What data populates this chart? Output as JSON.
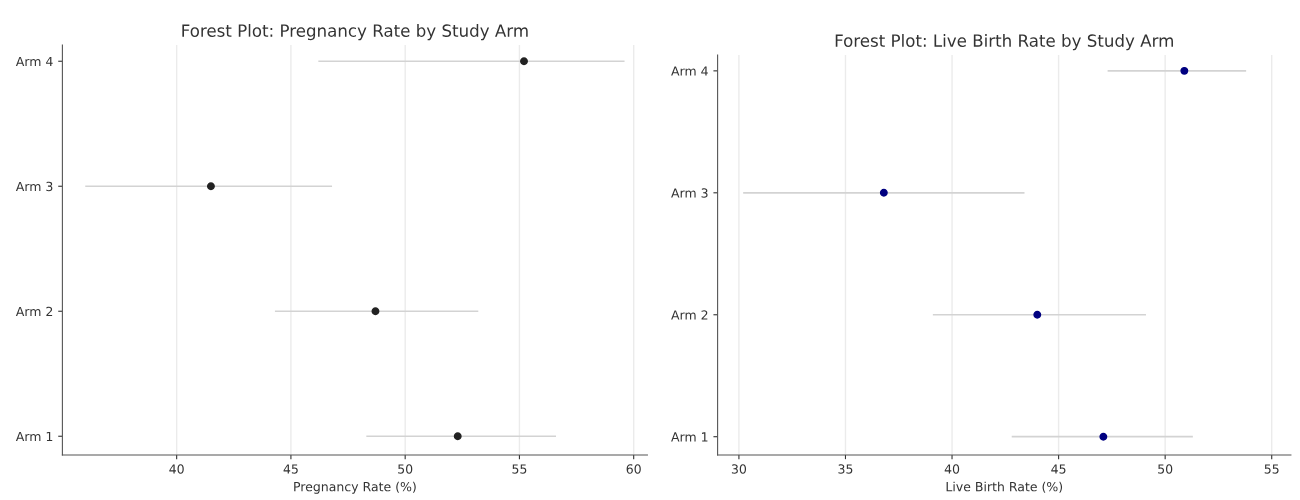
{
  "chart_data": [
    {
      "type": "scatter",
      "orientation": "horizontal",
      "title": "Forest Plot: Pregnancy Rate by Study Arm",
      "xlabel": "Pregnancy Rate (%)",
      "categories": [
        "Arm 4",
        "Arm 3",
        "Arm 2",
        "Arm 1"
      ],
      "series": [
        {
          "color": "#222222",
          "values": [
            55.2,
            41.5,
            48.7,
            52.3
          ],
          "errors": [
            [
              46.2,
              59.6
            ],
            [
              36.0,
              46.8
            ],
            [
              44.3,
              53.2
            ],
            [
              48.3,
              56.6
            ]
          ]
        }
      ],
      "xlim": [
        35.0,
        60.6
      ],
      "xticks": [
        40,
        45,
        50,
        55,
        60
      ],
      "grid": "x",
      "marker": "circle"
    },
    {
      "type": "scatter",
      "orientation": "horizontal",
      "title": "Forest Plot: Live Birth Rate by Study Arm",
      "xlabel": "Live Birth Rate (%)",
      "categories": [
        "Arm 4",
        "Arm 3",
        "Arm 2",
        "Arm 1"
      ],
      "series": [
        {
          "color": "#000080",
          "values": [
            50.9,
            36.8,
            44.0,
            47.1
          ],
          "errors": [
            [
              47.3,
              53.8
            ],
            [
              30.2,
              43.4
            ],
            [
              39.1,
              49.1
            ],
            [
              42.8,
              51.3
            ]
          ]
        }
      ],
      "xlim": [
        29.0,
        55.9
      ],
      "xticks": [
        30,
        35,
        40,
        45,
        50,
        55
      ],
      "grid": "x",
      "marker": "circle"
    }
  ]
}
